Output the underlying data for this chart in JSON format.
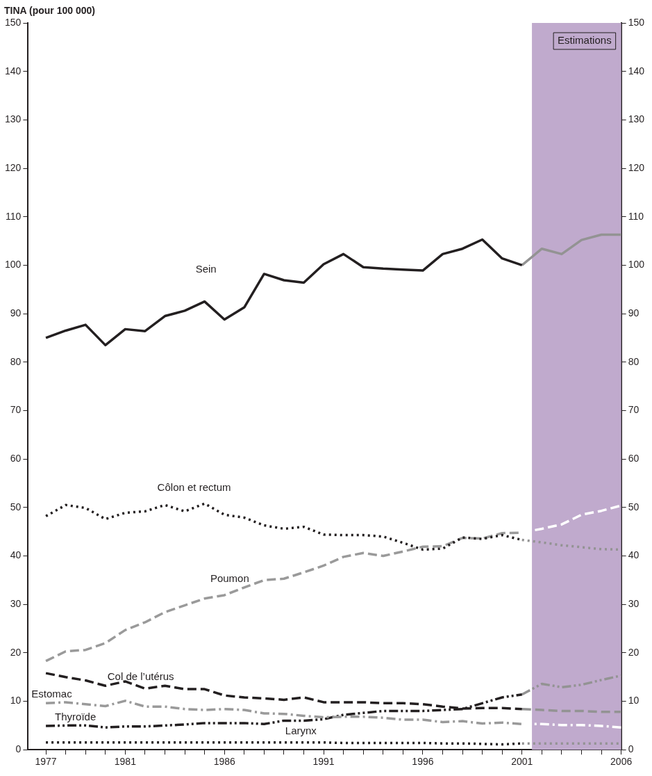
{
  "chart_data": {
    "type": "line",
    "ylabel": "TINA (pour 100 000)",
    "x": [
      1977,
      1978,
      1979,
      1980,
      1981,
      1982,
      1983,
      1984,
      1985,
      1986,
      1987,
      1988,
      1989,
      1990,
      1991,
      1992,
      1993,
      1994,
      1995,
      1996,
      1997,
      1998,
      1999,
      2000,
      2001
    ],
    "xlim": [
      1976.1,
      2006
    ],
    "xticks": [
      1977,
      {
        "value": 1978,
        "label": null
      },
      {
        "value": 1979,
        "label": null
      },
      {
        "value": 1980,
        "label": null
      },
      1981,
      {
        "value": 1982,
        "label": null
      },
      {
        "value": 1983,
        "label": null
      },
      {
        "value": 1984,
        "label": null
      },
      {
        "value": 1985,
        "label": null
      },
      1986,
      {
        "value": 1987,
        "label": null
      },
      {
        "value": 1988,
        "label": null
      },
      {
        "value": 1989,
        "label": null
      },
      {
        "value": 1990,
        "label": null
      },
      1991,
      {
        "value": 1992,
        "label": null
      },
      {
        "value": 1993,
        "label": null
      },
      {
        "value": 1994,
        "label": null
      },
      {
        "value": 1995,
        "label": null
      },
      1996,
      {
        "value": 1997,
        "label": null
      },
      {
        "value": 1998,
        "label": null
      },
      {
        "value": 1999,
        "label": null
      },
      {
        "value": 2000,
        "label": null
      },
      2001,
      {
        "value": 2002,
        "label": null
      },
      {
        "value": 2003,
        "label": null
      },
      {
        "value": 2004,
        "label": null
      },
      {
        "value": 2005,
        "label": null
      },
      2006
    ],
    "ylim": [
      0,
      150
    ],
    "yticks": [
      0,
      10,
      20,
      30,
      40,
      50,
      60,
      70,
      80,
      90,
      100,
      110,
      120,
      130,
      140,
      150
    ],
    "y2lim": [
      0,
      150
    ],
    "y2ticks": [
      0,
      10,
      20,
      30,
      40,
      50,
      60,
      70,
      80,
      90,
      100,
      110,
      120,
      130,
      140,
      150
    ],
    "grid": false,
    "legend": false,
    "bands": [
      {
        "axis": "x",
        "from": 2001.5,
        "to": 2006,
        "label": "Estimations",
        "color": "#c0aacd"
      }
    ],
    "series": [
      {
        "name": "Sein",
        "color": "#231f20",
        "line_style": "solid",
        "values": [
          85,
          86.5,
          87.7,
          83.5,
          86.8,
          86.4,
          89.5,
          90.6,
          92.5,
          88.8,
          91.3,
          98.2,
          96.9,
          96.4,
          100.2,
          102.3,
          99.6,
          99.3,
          99.1,
          98.9,
          102.3,
          103.4,
          105.3,
          101.4,
          100
        ]
      },
      {
        "color": "#939393",
        "line_style": "solid",
        "x": [
          2001,
          2002,
          2003,
          2004,
          2005,
          2006
        ],
        "values": [
          100,
          103.4,
          102.3,
          105.2,
          106.3,
          106.3
        ]
      },
      {
        "name": "Côlon et rectum",
        "color": "#231f20",
        "line_style": "dotted",
        "values": [
          48.2,
          50.5,
          49.9,
          47.6,
          48.9,
          49.2,
          50.5,
          49.2,
          50.8,
          48.5,
          47.9,
          46.3,
          45.6,
          46,
          44.4,
          44.3,
          44.3,
          44,
          42.7,
          41.3,
          41.5,
          43.8,
          43.5,
          44.3,
          43.3
        ]
      },
      {
        "color": "#939393",
        "line_style": "dotted",
        "x": [
          2001,
          2002,
          2003,
          2004,
          2005,
          2006
        ],
        "values": [
          43.3,
          42.8,
          42.2,
          41.8,
          41.4,
          41.3
        ]
      },
      {
        "name": "Poumon",
        "color": "#9a9a9a",
        "line_style": "dashed",
        "values": [
          18.3,
          20.3,
          20.6,
          22,
          24.7,
          26.3,
          28.4,
          29.8,
          31.2,
          31.9,
          33.5,
          35,
          35.3,
          36.6,
          38,
          39.8,
          40.6,
          40,
          40.9,
          41.9,
          42,
          43.7,
          43.6,
          44.7,
          44.8
        ]
      },
      {
        "color": "#ffffff",
        "line_style": "dashed",
        "x": [
          2001,
          2002,
          2003,
          2004,
          2005,
          2006
        ],
        "values": [
          44.8,
          45.6,
          46.5,
          48.5,
          49.3,
          50.4
        ]
      },
      {
        "name": "Col de l’utérus",
        "color": "#231f20",
        "line_style": "dashed",
        "values": [
          15.8,
          15,
          14.3,
          13.2,
          14.1,
          12.6,
          13.2,
          12.5,
          12.5,
          11.2,
          10.8,
          10.6,
          10.3,
          10.8,
          9.8,
          9.8,
          9.8,
          9.6,
          9.6,
          9.4,
          8.9,
          8.5,
          8.6,
          8.6,
          8.4
        ]
      },
      {
        "color": "#939393",
        "line_style": "dashed",
        "x": [
          2001,
          2002,
          2003,
          2004,
          2005,
          2006
        ],
        "values": [
          8.4,
          8.2,
          8,
          8,
          7.8,
          7.8
        ]
      },
      {
        "name": "Estomac",
        "color": "#9a9a9a",
        "line_style": "dashdot",
        "values": [
          9.6,
          9.8,
          9.4,
          9,
          10.1,
          8.9,
          8.9,
          8.4,
          8.2,
          8.4,
          8.2,
          7.5,
          7.4,
          7,
          6.7,
          6.8,
          6.8,
          6.6,
          6.2,
          6.2,
          5.7,
          5.9,
          5.4,
          5.6,
          5.3
        ]
      },
      {
        "color": "#ffffff",
        "line_style": "dashdot",
        "x": [
          2001,
          2002,
          2003,
          2004,
          2005,
          2006
        ],
        "values": [
          5.3,
          5.3,
          5.1,
          5.1,
          4.9,
          4.6
        ]
      },
      {
        "name": "Thyroïde",
        "color": "#231f20",
        "line_style": "dashdotdot",
        "values": [
          4.9,
          5,
          5,
          4.6,
          4.8,
          4.8,
          5,
          5.2,
          5.5,
          5.5,
          5.5,
          5.3,
          6,
          6,
          6.3,
          7.2,
          7.6,
          8,
          8,
          8,
          8.2,
          8.4,
          9.6,
          10.8,
          11.4
        ]
      },
      {
        "color": "#939393",
        "line_style": "dashdotdot",
        "x": [
          2001,
          2002,
          2003,
          2004,
          2005,
          2006
        ],
        "values": [
          11.4,
          13.6,
          12.9,
          13.4,
          14.4,
          15.3
        ]
      },
      {
        "name": "Larynx",
        "color": "#231f20",
        "line_style": "dotted",
        "values": [
          1.5,
          1.5,
          1.5,
          1.5,
          1.5,
          1.5,
          1.5,
          1.5,
          1.5,
          1.5,
          1.5,
          1.5,
          1.5,
          1.5,
          1.5,
          1.4,
          1.4,
          1.4,
          1.4,
          1.4,
          1.3,
          1.3,
          1.2,
          1.1,
          1.3
        ]
      },
      {
        "color": "#939393",
        "line_style": "dotted",
        "x": [
          2001,
          2002,
          2003,
          2004,
          2005,
          2006
        ],
        "values": [
          1.3,
          1.3,
          1.3,
          1.3,
          1.3,
          1.3
        ]
      }
    ]
  }
}
